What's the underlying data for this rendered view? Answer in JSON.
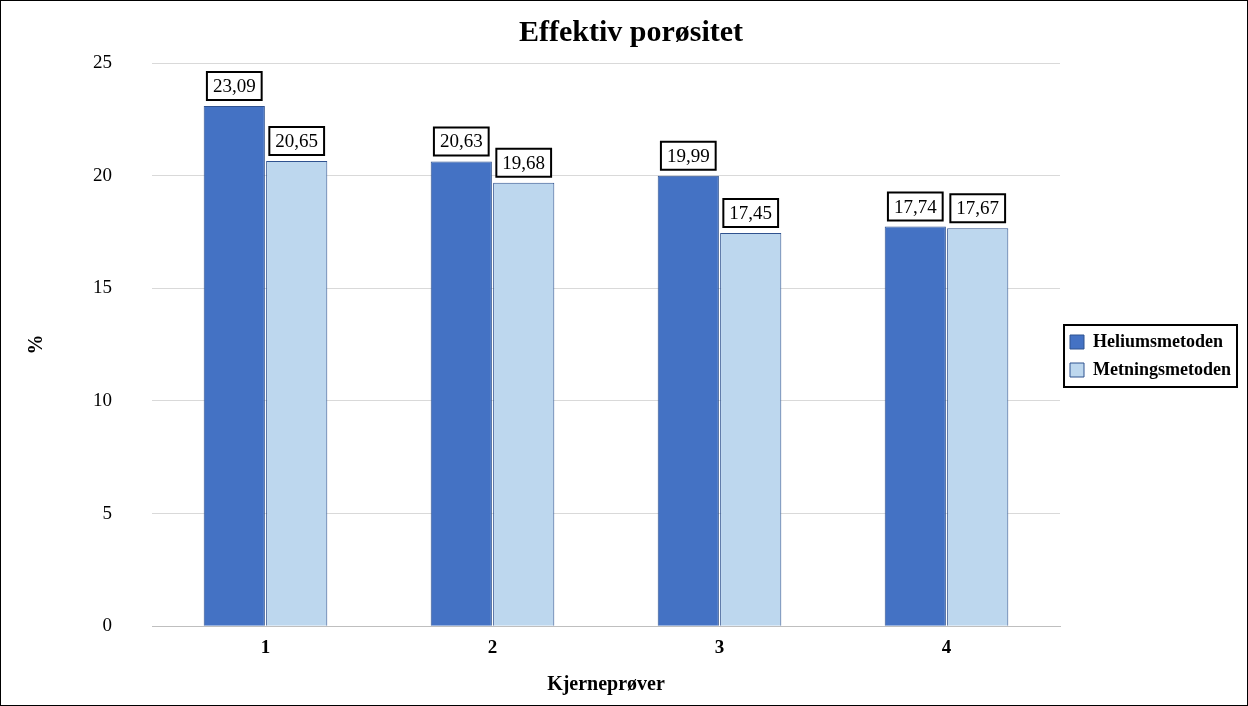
{
  "chart_data": {
    "type": "bar",
    "title": "Effektiv porøsitet",
    "xlabel": "Kjerneprøver",
    "ylabel": "%",
    "categories": [
      "1",
      "2",
      "3",
      "4"
    ],
    "series": [
      {
        "name": "Heliumsmetoden",
        "color": "#4472c4",
        "values": [
          23.09,
          20.63,
          19.99,
          17.74
        ],
        "value_labels": [
          "23,09",
          "20,63",
          "19,99",
          "17,74"
        ]
      },
      {
        "name": "Metningsmetoden",
        "color": "#bdd7ee",
        "values": [
          20.65,
          19.68,
          17.45,
          17.67
        ],
        "value_labels": [
          "20,65",
          "19,68",
          "17,45",
          "17,67"
        ]
      }
    ],
    "ylim": [
      0,
      25
    ],
    "yticks": [
      0,
      5,
      10,
      15,
      20,
      25
    ],
    "grid": "y",
    "legend": "right"
  }
}
